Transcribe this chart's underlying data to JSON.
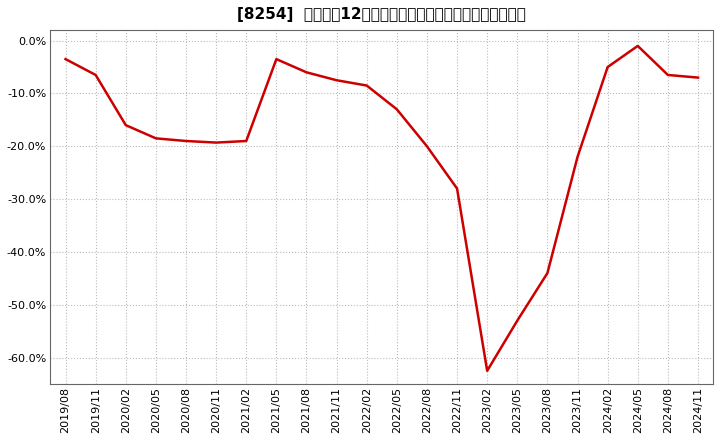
{
  "title": "[8254]  売上高の12か月移動合計の対前年同期増減率の推移",
  "x_labels": [
    "2019/08",
    "2019/11",
    "2020/02",
    "2020/05",
    "2020/08",
    "2020/11",
    "2021/02",
    "2021/05",
    "2021/08",
    "2021/11",
    "2022/02",
    "2022/05",
    "2022/08",
    "2022/11",
    "2023/02",
    "2023/05",
    "2023/08",
    "2023/11",
    "2024/02",
    "2024/05",
    "2024/08",
    "2024/11"
  ],
  "y_values": [
    -3.5,
    -6.5,
    -16.0,
    -18.5,
    -19.0,
    -19.3,
    -19.0,
    -3.5,
    -6.0,
    -7.5,
    -8.5,
    -13.0,
    -20.0,
    -28.0,
    -62.5,
    -53.0,
    -44.0,
    -22.0,
    -5.0,
    -1.0,
    -6.5,
    -7.0
  ],
  "line_color": "#cc0000",
  "background_color": "#ffffff",
  "plot_bg_color": "#ffffff",
  "grid_color": "#bbbbbb",
  "ylim": [
    -65,
    2
  ],
  "yticks": [
    0,
    -10,
    -20,
    -30,
    -40,
    -50,
    -60
  ],
  "title_fontsize": 11,
  "tick_fontsize": 8
}
